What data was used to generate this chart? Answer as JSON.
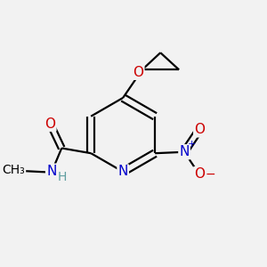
{
  "bg_color": "#f2f2f2",
  "bond_color": "#000000",
  "bond_width": 1.6,
  "atom_colors": {
    "C": "#000000",
    "N": "#0000cc",
    "O": "#cc0000",
    "H": "#5f9ea0"
  },
  "font_size": 11
}
